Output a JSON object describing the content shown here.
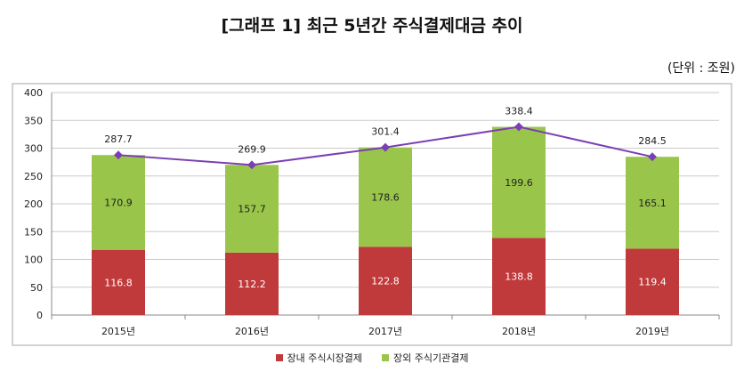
{
  "title": "[그래프 1] 최근 5년간 주식결제대금 추이",
  "unit": "(단위 : 조원)",
  "colors": {
    "bottom": "#c0393b",
    "top": "#99c64a",
    "line": "#7b3fb3",
    "grid": "#c9c9c9",
    "frame": "#a6a6a6"
  },
  "chart_data": {
    "type": "bar",
    "stacked": true,
    "categories": [
      "2015년",
      "2016년",
      "2017년",
      "2018년",
      "2019년"
    ],
    "series": [
      {
        "name": "장내 주식시장결제",
        "values": [
          116.8,
          112.2,
          122.8,
          138.8,
          119.4
        ],
        "labels": [
          "116.8",
          "112.2",
          "122.8",
          "138.8",
          "119.4"
        ]
      },
      {
        "name": "장외 주식기관결제",
        "values": [
          170.9,
          157.7,
          178.6,
          199.6,
          165.1
        ],
        "labels": [
          "170.9",
          "157.7",
          "178.6",
          "199.6",
          "165.1"
        ]
      }
    ],
    "totals": {
      "values": [
        287.7,
        269.9,
        301.4,
        338.4,
        284.5
      ],
      "labels": [
        "287.7",
        "269.9",
        "301.4",
        "338.4",
        "284.5"
      ]
    },
    "ylim": [
      0,
      400
    ],
    "yticks": [
      "0",
      "50",
      "100",
      "150",
      "200",
      "250",
      "300",
      "350",
      "400"
    ],
    "grid": true,
    "legend_position": "bottom"
  }
}
